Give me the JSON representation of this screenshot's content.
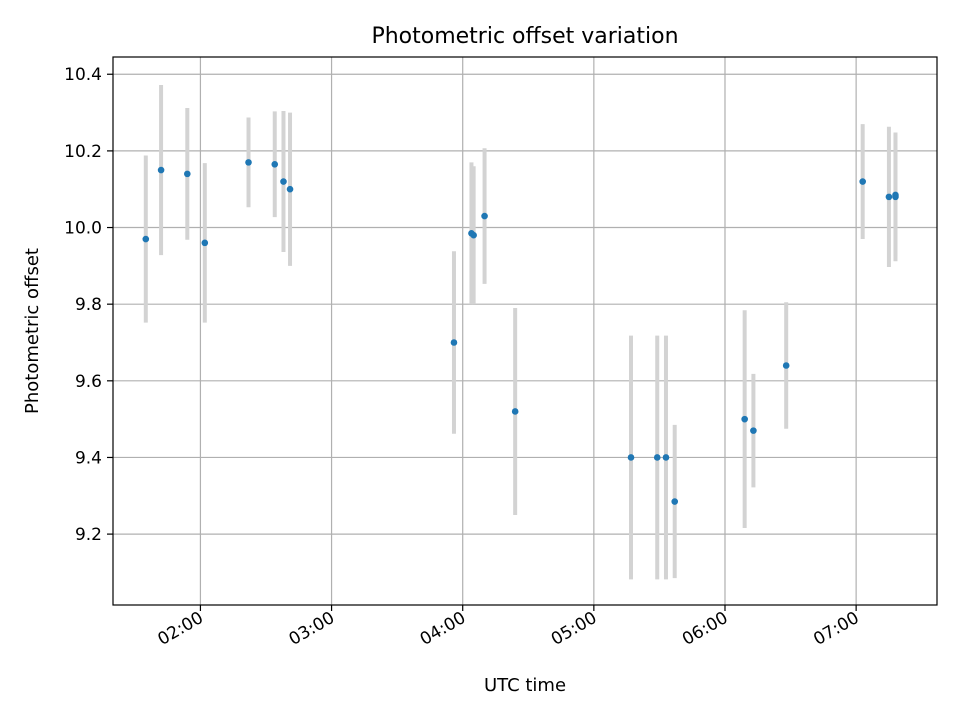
{
  "chart_data": {
    "type": "scatter",
    "title": "Photometric offset variation",
    "xlabel": "UTC time",
    "ylabel": "Photometric offset",
    "x_ticks": [
      "02:00",
      "03:00",
      "04:00",
      "05:00",
      "06:00",
      "07:00"
    ],
    "y_ticks": [
      "9.2",
      "9.4",
      "9.6",
      "9.8",
      "10.0",
      "10.2",
      "10.4"
    ],
    "xlim": [
      "01:20",
      "07:37"
    ],
    "ylim": [
      9.015,
      10.445
    ],
    "grid": true,
    "colors": {
      "point": "#1f77b4",
      "errorbar": "#d3d3d3",
      "grid": "#b0b0b0"
    },
    "points": [
      {
        "time": "01:35",
        "value": 9.97,
        "err": 0.218
      },
      {
        "time": "01:42",
        "value": 10.15,
        "err": 0.222
      },
      {
        "time": "01:54",
        "value": 10.14,
        "err": 0.172
      },
      {
        "time": "02:02",
        "value": 9.96,
        "err": 0.208
      },
      {
        "time": "02:22",
        "value": 10.17,
        "err": 0.117
      },
      {
        "time": "02:34",
        "value": 10.165,
        "err": 0.138
      },
      {
        "time": "02:38",
        "value": 10.12,
        "err": 0.184
      },
      {
        "time": "02:41",
        "value": 10.1,
        "err": 0.2
      },
      {
        "time": "03:56",
        "value": 9.7,
        "err": 0.238
      },
      {
        "time": "04:04",
        "value": 9.985,
        "err": 0.185
      },
      {
        "time": "04:05",
        "value": 9.98,
        "err": 0.18
      },
      {
        "time": "04:10",
        "value": 10.03,
        "err": 0.177
      },
      {
        "time": "04:24",
        "value": 9.52,
        "err": 0.27
      },
      {
        "time": "05:17",
        "value": 9.4,
        "err": 0.318
      },
      {
        "time": "05:29",
        "value": 9.4,
        "err": 0.318
      },
      {
        "time": "05:33",
        "value": 9.4,
        "err": 0.318
      },
      {
        "time": "05:37",
        "value": 9.285,
        "err": 0.2
      },
      {
        "time": "06:09",
        "value": 9.5,
        "err": 0.284
      },
      {
        "time": "06:13",
        "value": 9.47,
        "err": 0.148
      },
      {
        "time": "06:28",
        "value": 9.64,
        "err": 0.165
      },
      {
        "time": "07:03",
        "value": 10.12,
        "err": 0.15
      },
      {
        "time": "07:15",
        "value": 10.08,
        "err": 0.183
      },
      {
        "time": "07:18",
        "value": 10.08,
        "err": 0.168
      },
      {
        "time": "07:18",
        "value": 10.085,
        "err": 0.16
      }
    ]
  }
}
